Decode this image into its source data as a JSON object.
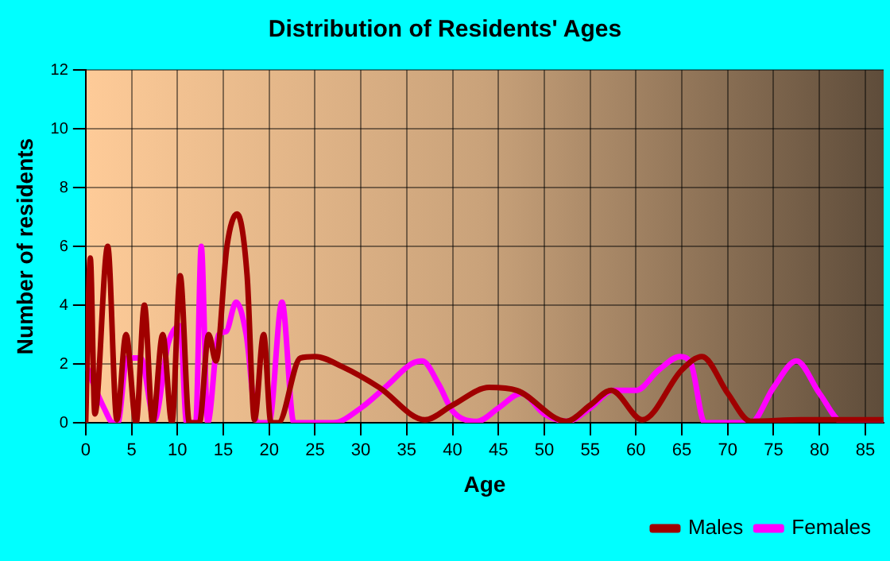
{
  "chart_data": {
    "type": "line",
    "title": "Distribution of Residents' Ages",
    "xlabel": "Age",
    "ylabel": "Number of residents",
    "xlim": [
      0,
      87
    ],
    "xticks": [
      0,
      5,
      10,
      15,
      20,
      25,
      30,
      35,
      40,
      45,
      50,
      55,
      60,
      65,
      70,
      75,
      80,
      85
    ],
    "ylim": [
      0,
      12
    ],
    "yticks": [
      0,
      2,
      4,
      6,
      8,
      10,
      12
    ],
    "grid": true,
    "legend": "bottom right",
    "marker": "none",
    "line_style": "solid",
    "series": [
      {
        "name": "Males",
        "color": "#a00000",
        "x": [
          0,
          0.5,
          1,
          2.4,
          3.4,
          4.4,
          5.5,
          6.4,
          7.3,
          8.4,
          9.4,
          10.3,
          11.3,
          12.4,
          13.4,
          14.2,
          15.4,
          16.5,
          17.6,
          18.4,
          19.4,
          20.2,
          21,
          23.4,
          25,
          28,
          32,
          37,
          40,
          44,
          47,
          52.4,
          55,
          57.3,
          60.7,
          65,
          67.2,
          70,
          72.5,
          78,
          87
        ],
        "values": [
          0,
          5.6,
          0.3,
          6,
          0.1,
          3,
          0,
          4,
          0,
          3,
          0,
          5,
          0,
          0,
          3,
          2.1,
          6,
          7.1,
          5,
          0.1,
          3,
          0,
          0,
          2.2,
          2.25,
          1.9,
          1.2,
          0.1,
          0.6,
          1.2,
          1.1,
          0.05,
          0.6,
          1.1,
          0.1,
          1.8,
          2.25,
          1,
          0.05,
          0.1,
          0.1
        ]
      },
      {
        "name": "Females",
        "color": "#ff00ff",
        "x": [
          0,
          1,
          2,
          3,
          3.5,
          4.5,
          6,
          7.5,
          9,
          10.3,
          11,
          12,
          12.6,
          13.3,
          14.5,
          15.3,
          16.4,
          17.5,
          18.7,
          20,
          21.4,
          22.7,
          27,
          30,
          33,
          35.5,
          36.7,
          38.5,
          40,
          42.7,
          45,
          47.5,
          50,
          52.5,
          55,
          57.5,
          60,
          62.5,
          64.8,
          66,
          67.5,
          72.5,
          75,
          77.5,
          80,
          82.6,
          87
        ],
        "values": [
          2,
          1.2,
          0.5,
          0,
          0,
          2.2,
          2.2,
          0.1,
          2.7,
          3.3,
          0,
          0,
          6,
          0,
          3,
          3.1,
          4.1,
          3,
          0,
          0,
          4.1,
          0,
          0,
          0.5,
          1.3,
          2,
          2.1,
          1.3,
          0.4,
          0.05,
          0.5,
          1,
          0.3,
          0.05,
          0.5,
          1.1,
          1.1,
          1.8,
          2.25,
          2,
          0,
          0,
          1.2,
          2.1,
          1,
          0,
          0
        ]
      }
    ]
  }
}
